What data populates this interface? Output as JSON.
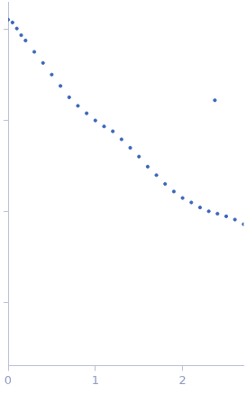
{
  "chart_data": {
    "type": "scatter",
    "x": [
      0.0,
      0.05,
      0.1,
      0.15,
      0.2,
      0.3,
      0.4,
      0.5,
      0.6,
      0.7,
      0.8,
      0.9,
      1.0,
      1.1,
      1.2,
      1.3,
      1.4,
      1.5,
      1.6,
      1.7,
      1.8,
      1.9,
      2.0,
      2.1,
      2.2,
      2.3,
      2.37,
      2.4,
      2.5,
      2.6,
      2.7
    ],
    "values": [
      12.9,
      12.0,
      10.3,
      8.7,
      7.6,
      5.7,
      4.3,
      3.2,
      2.4,
      1.8,
      1.45,
      1.2,
      1.0,
      0.86,
      0.76,
      0.62,
      0.5,
      0.4,
      0.31,
      0.25,
      0.2,
      0.165,
      0.14,
      0.125,
      0.11,
      0.1,
      1.67,
      0.094,
      0.088,
      0.081,
      0.072
    ],
    "color": "#3a66b8",
    "marker": "circle",
    "xlim": [
      0,
      2.7
    ],
    "xticks": [
      0,
      1,
      2
    ],
    "ylim": [
      0.002,
      20
    ],
    "yticks": [
      0.01,
      0.1,
      1,
      10
    ],
    "log": "y",
    "grid": false,
    "tick_labels": "x"
  }
}
